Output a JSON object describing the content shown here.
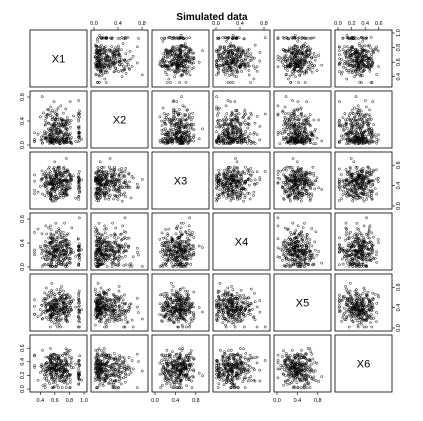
{
  "chart_data": {
    "type": "scatter",
    "subtype": "scatterplot-matrix",
    "title": "Simulated data",
    "variables": [
      "X1",
      "X2",
      "X3",
      "X4",
      "X5",
      "X6"
    ],
    "ranges": {
      "X1": [
        0.3,
        1.0
      ],
      "X2": [
        0.0,
        0.85
      ],
      "X3": [
        0.0,
        1.0
      ],
      "X4": [
        0.0,
        0.85
      ],
      "X5": [
        0.0,
        1.0
      ],
      "X6": [
        0.0,
        0.75
      ]
    },
    "ticks": {
      "X1": [
        0.4,
        0.6,
        0.8,
        1.0
      ],
      "X2": [
        0.0,
        0.4,
        0.8
      ],
      "X3": [
        0.0,
        0.4,
        0.8
      ],
      "X4": [
        0.0,
        0.4,
        0.8
      ],
      "X5": [
        0.0,
        0.4,
        0.8
      ],
      "X6": [
        0.0,
        0.2,
        0.4,
        0.6
      ]
    },
    "points_per_panel": 300,
    "point_style": "open circle",
    "grid": false,
    "legend": "none",
    "colors": {
      "points": "#000000",
      "frame": "#000000",
      "background": "#ffffff"
    }
  }
}
